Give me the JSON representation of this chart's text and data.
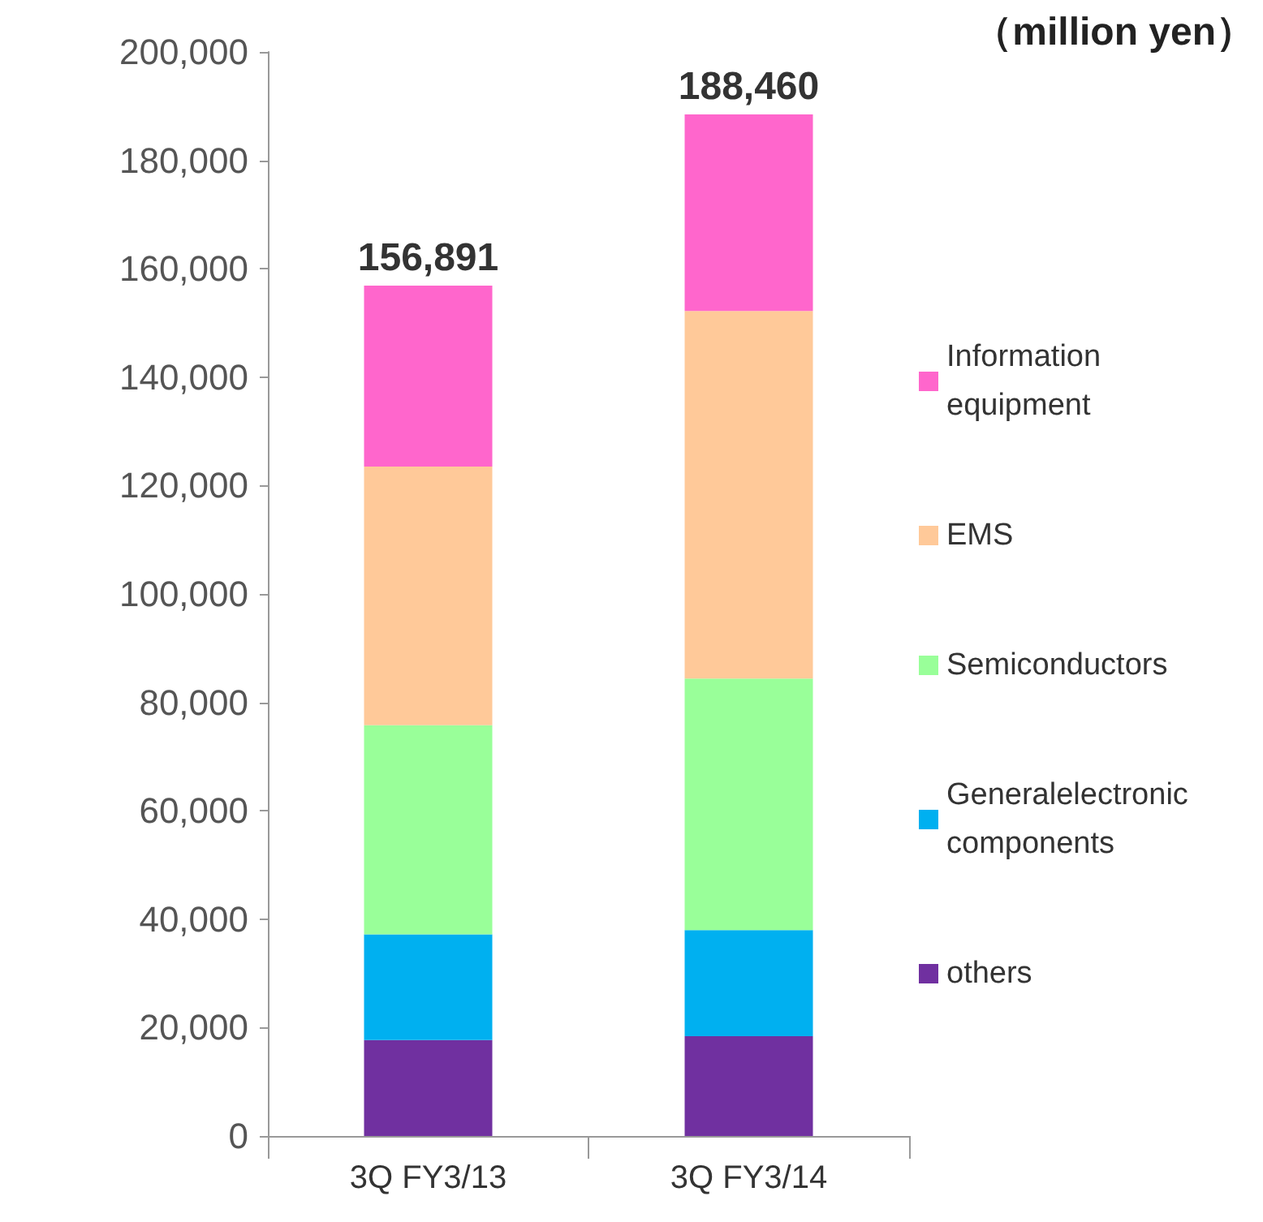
{
  "chart_data": {
    "type": "bar",
    "stacked": true,
    "categories": [
      "3Q FY3/13",
      "3Q FY3/14"
    ],
    "series": [
      {
        "name": "others",
        "color": "#7030a0",
        "values": [
          17700,
          18400
        ]
      },
      {
        "name": "Generalelectronic components",
        "color": "#00b0f0",
        "values": [
          19500,
          19600
        ]
      },
      {
        "name": "Semiconductors",
        "color": "#99ff99",
        "values": [
          38600,
          46400
        ]
      },
      {
        "name": "EMS",
        "color": "#ffc999",
        "values": [
          47700,
          67800
        ]
      },
      {
        "name": "Information equipment",
        "color": "#ff66cc",
        "values": [
          33391,
          36260
        ]
      }
    ],
    "totals": [
      "156,891",
      "188,460"
    ],
    "annotations": [
      "（million yen）"
    ],
    "ylim": [
      0,
      200000
    ],
    "yticks": [
      {
        "value": 0,
        "label": "0"
      },
      {
        "value": 20000,
        "label": "20,000"
      },
      {
        "value": 40000,
        "label": "40,000"
      },
      {
        "value": 60000,
        "label": "60,000"
      },
      {
        "value": 80000,
        "label": "80,000"
      },
      {
        "value": 100000,
        "label": "100,000"
      },
      {
        "value": 120000,
        "label": "120,000"
      },
      {
        "value": 140000,
        "label": "140,000"
      },
      {
        "value": 160000,
        "label": "160,000"
      },
      {
        "value": 180000,
        "label": "180,000"
      },
      {
        "value": 200000,
        "label": "200,000"
      }
    ],
    "grid": false,
    "legend": "right"
  }
}
